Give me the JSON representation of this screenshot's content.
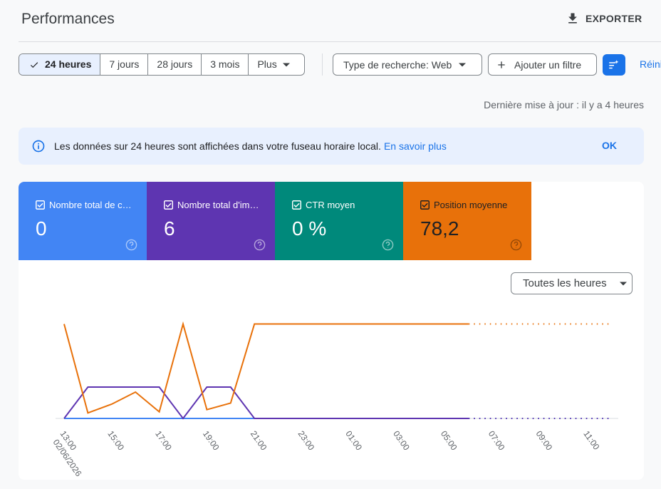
{
  "header": {
    "title": "Performances",
    "export": "EXPORTER"
  },
  "toolbar": {
    "date_ranges": [
      "24 heures",
      "7 jours",
      "28 jours",
      "3 mois",
      "Plus"
    ],
    "search_type": "Type de recherche: Web",
    "add_filter": "Ajouter un filtre",
    "reset": "Réini"
  },
  "last_update": "Dernière mise à jour : il y a 4 heures",
  "banner": {
    "text": "Les données sur 24 heures sont affichées dans votre fuseau horaire local.",
    "link": "En savoir plus",
    "ok": "OK"
  },
  "metrics": [
    {
      "label": "Nombre total de c…",
      "value": "0",
      "color": "#4285f4"
    },
    {
      "label": "Nombre total d'im…",
      "value": "6",
      "color": "#5e35b1"
    },
    {
      "label": "CTR moyen",
      "value": "0 %",
      "color": "#00897b"
    },
    {
      "label": "Position moyenne",
      "value": "78,2",
      "color": "#e8710a"
    }
  ],
  "chart_filter": "Toutes les heures",
  "chart_data": {
    "type": "line",
    "categories": [
      "13:00",
      null,
      "15:00",
      null,
      "17:00",
      null,
      "19:00",
      null,
      "21:00",
      null,
      "23:00",
      null,
      "01:00",
      null,
      "03:00",
      null,
      "05:00",
      null,
      "07:00",
      null,
      "09:00",
      null,
      "11:00",
      null
    ],
    "x_date": "02/06/2026",
    "incomplete_from": 17,
    "ylim": [
      0,
      3.5
    ],
    "y2lim": [
      0,
      100
    ],
    "series": [
      {
        "color": "#4285f4",
        "values": [
          0,
          0,
          0,
          0,
          0,
          0,
          0,
          0,
          0,
          0,
          0,
          0,
          0,
          0,
          0,
          0,
          0,
          0,
          0,
          0,
          0,
          0,
          0,
          0
        ]
      },
      {
        "color": "#5e35b1",
        "values": [
          0,
          1,
          1,
          1,
          1,
          0,
          1,
          1,
          0,
          0,
          0,
          0,
          0,
          0,
          0,
          0,
          0,
          0,
          0,
          0,
          0,
          0,
          0,
          0
        ]
      },
      {
        "color": "#e8710a",
        "axis": "y2",
        "values": [
          86,
          5,
          13,
          24,
          6,
          86,
          8,
          14,
          86,
          86,
          86,
          86,
          86,
          86,
          86,
          86,
          86,
          86,
          86,
          86,
          86,
          86,
          86,
          86
        ]
      }
    ]
  }
}
